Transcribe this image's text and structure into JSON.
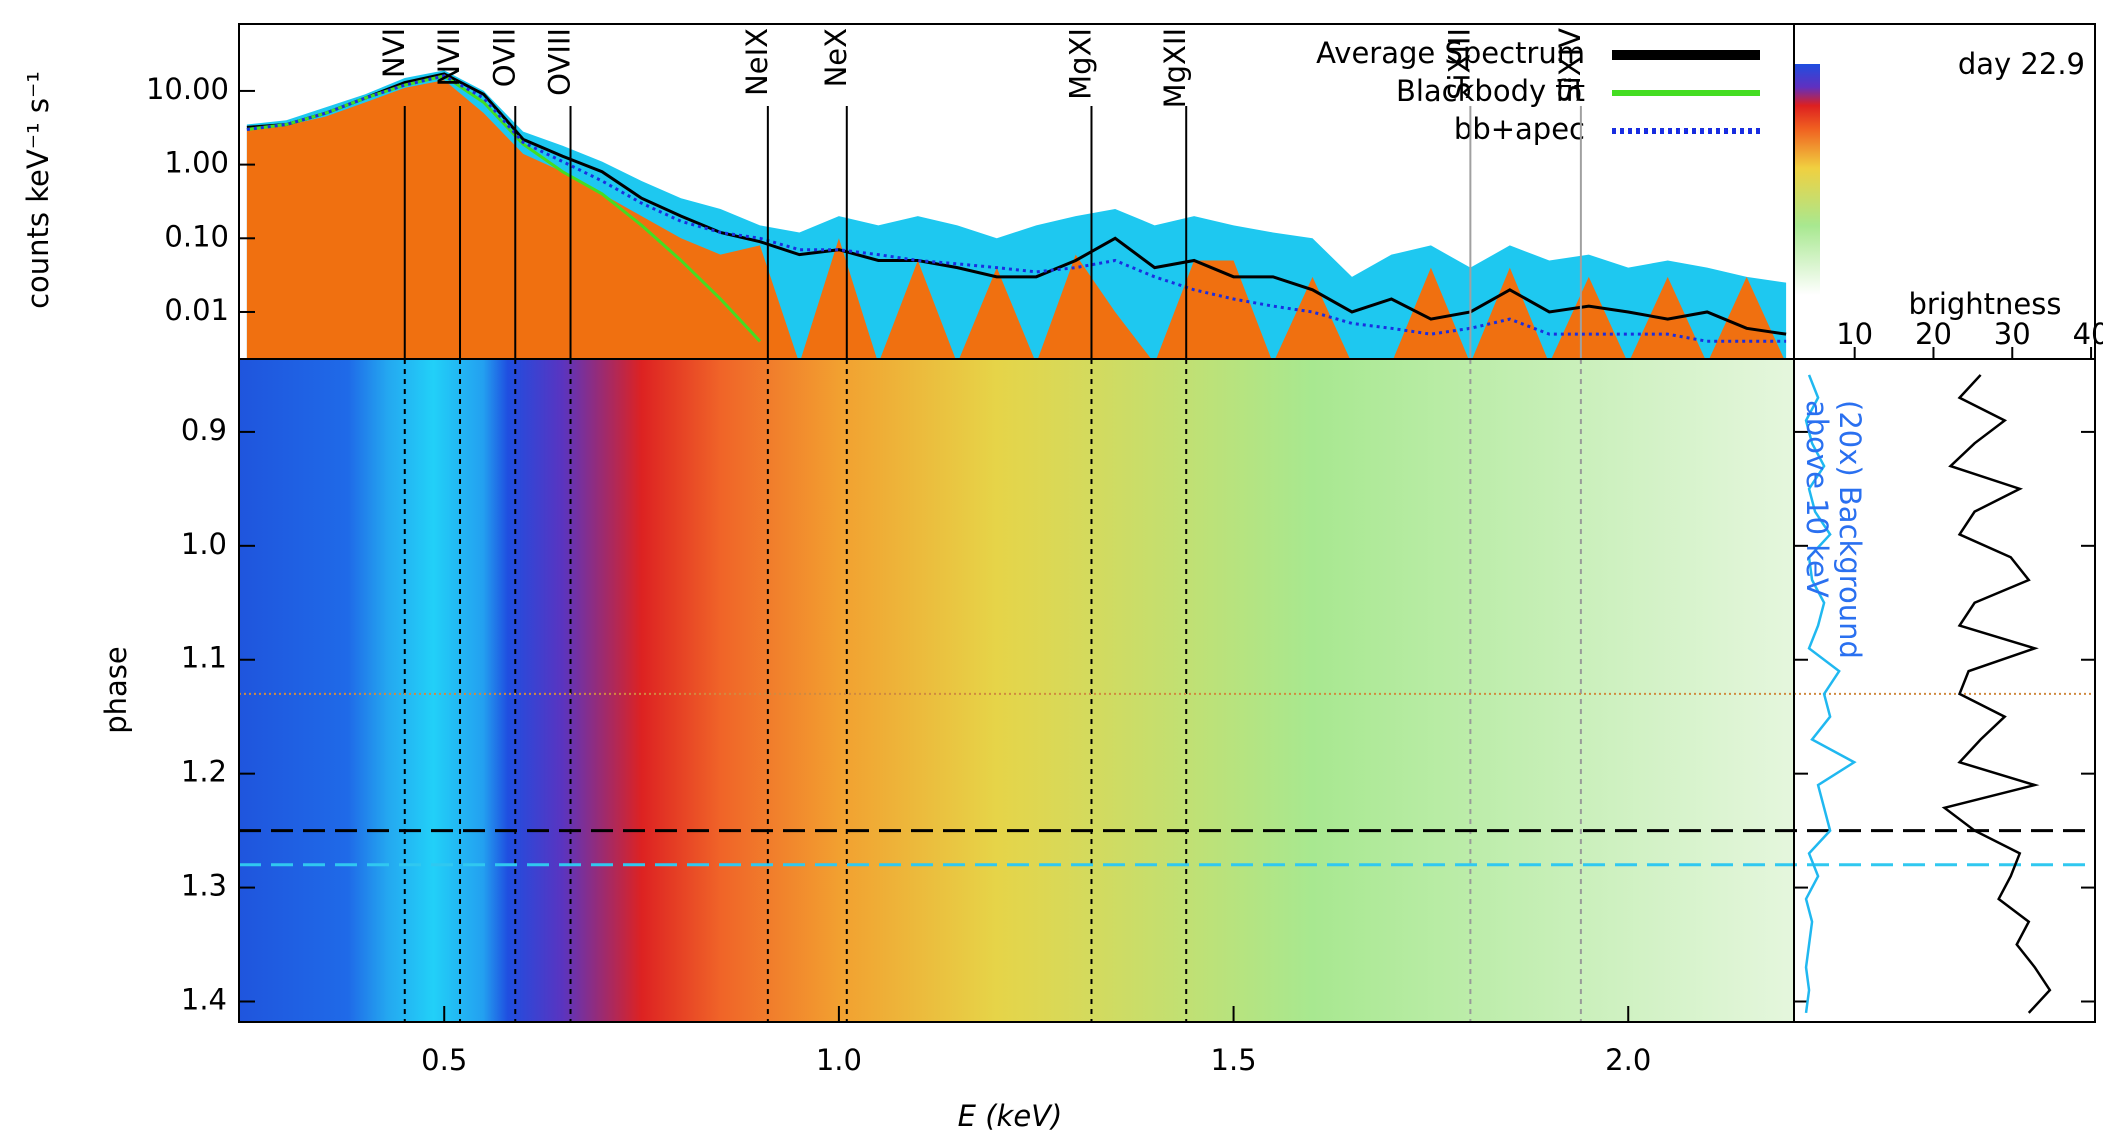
{
  "chart_data": [
    {
      "type": "spectrum",
      "ylabel": "counts keV⁻¹ s⁻¹",
      "log_y": true,
      "xlim": [
        0.24,
        2.21
      ],
      "ylim": [
        0.0023,
        81
      ],
      "yticks": [
        {
          "value": 10,
          "label": "10.00"
        },
        {
          "value": 1,
          "label": "1.00"
        },
        {
          "value": 0.1,
          "label": "0.10"
        },
        {
          "value": 0.01,
          "label": "0.01"
        }
      ],
      "x": [
        0.25,
        0.3,
        0.35,
        0.4,
        0.45,
        0.5,
        0.55,
        0.6,
        0.65,
        0.7,
        0.75,
        0.8,
        0.85,
        0.9,
        0.95,
        1.0,
        1.05,
        1.1,
        1.15,
        1.2,
        1.25,
        1.3,
        1.35,
        1.4,
        1.45,
        1.5,
        1.55,
        1.6,
        1.65,
        1.7,
        1.75,
        1.8,
        1.85,
        1.9,
        1.95,
        2.0,
        2.05,
        2.1,
        2.15,
        2.2
      ],
      "areas": [
        {
          "color": "#1ec8f0",
          "values": [
            3.5,
            4,
            6,
            9,
            15,
            19,
            10,
            2.8,
            1.8,
            1.1,
            0.6,
            0.35,
            0.25,
            0.15,
            0.12,
            0.2,
            0.15,
            0.2,
            0.15,
            0.1,
            0.15,
            0.2,
            0.25,
            0.15,
            0.2,
            0.15,
            0.12,
            0.1,
            0.03,
            0.06,
            0.08,
            0.04,
            0.08,
            0.05,
            0.06,
            0.04,
            0.05,
            0.04,
            0.03,
            0.025
          ]
        },
        {
          "color": "#f07010",
          "values": [
            3,
            3.4,
            4.5,
            7,
            11,
            14,
            5,
            1.4,
            0.8,
            0.4,
            0.2,
            0.1,
            0.06,
            0.08,
            0.002,
            0.1,
            0.002,
            0.05,
            0.002,
            0.04,
            0.002,
            0.06,
            0.01,
            0.002,
            0.05,
            0.05,
            0.002,
            0.03,
            0.002,
            0.002,
            0.04,
            0.002,
            0.04,
            0.002,
            0.03,
            0.002,
            0.03,
            0.002,
            0.03,
            0.002
          ]
        }
      ],
      "series": [
        {
          "name": "Average Spectrum",
          "color": "#000000",
          "style": "solid",
          "values": [
            3.2,
            3.5,
            5,
            8,
            13,
            17,
            9,
            2.2,
            1.3,
            0.8,
            0.35,
            0.2,
            0.12,
            0.09,
            0.06,
            0.07,
            0.05,
            0.05,
            0.04,
            0.03,
            0.03,
            0.05,
            0.1,
            0.04,
            0.05,
            0.03,
            0.03,
            0.02,
            0.01,
            0.015,
            0.008,
            0.01,
            0.02,
            0.01,
            0.012,
            0.01,
            0.008,
            0.01,
            0.006,
            0.005
          ]
        },
        {
          "name": "Blackbody fit",
          "color": "#44dd22",
          "style": "solid",
          "values": [
            3.0,
            3.5,
            5,
            8,
            12,
            16,
            7,
            1.9,
            0.8,
            0.4,
            0.15,
            0.05,
            0.015,
            0.004,
            null,
            null,
            null,
            null,
            null,
            null,
            null,
            null,
            null,
            null,
            null,
            null,
            null,
            null,
            null,
            null,
            null,
            null,
            null,
            null,
            null,
            null,
            null,
            null,
            null,
            null
          ]
        },
        {
          "name": "bb+apec",
          "color": "#1a2ee0",
          "style": "dotted",
          "values": [
            3.0,
            3.5,
            5,
            8,
            12,
            16,
            8,
            2,
            1.1,
            0.6,
            0.3,
            0.17,
            0.12,
            0.1,
            0.07,
            0.07,
            0.06,
            0.05,
            0.045,
            0.04,
            0.035,
            0.04,
            0.05,
            0.03,
            0.02,
            0.015,
            0.012,
            0.01,
            0.007,
            0.006,
            0.005,
            0.006,
            0.008,
            0.005,
            0.005,
            0.005,
            0.005,
            0.004,
            0.004,
            0.004
          ]
        }
      ],
      "lines": [
        {
          "label": "NVI",
          "energy": 0.45,
          "color": "#000000"
        },
        {
          "label": "NVII",
          "energy": 0.52,
          "color": "#000000"
        },
        {
          "label": "OVII",
          "energy": 0.59,
          "color": "#000000"
        },
        {
          "label": "OVIII",
          "energy": 0.66,
          "color": "#000000"
        },
        {
          "label": "NeIX",
          "energy": 0.91,
          "color": "#000000"
        },
        {
          "label": "NeX",
          "energy": 1.01,
          "color": "#000000"
        },
        {
          "label": "MgXI",
          "energy": 1.32,
          "color": "#000000"
        },
        {
          "label": "MgXII",
          "energy": 1.44,
          "color": "#000000"
        },
        {
          "label": "SiXIII",
          "energy": 1.8,
          "color": "#a0a0a0"
        },
        {
          "label": "SiXIV",
          "energy": 1.94,
          "color": "#a0a0a0"
        }
      ]
    },
    {
      "type": "heatmap",
      "xlabel": "E (keV)",
      "ylabel": "phase",
      "xlim": [
        0.24,
        2.21
      ],
      "xticks": [
        0.5,
        {
          "value": 1,
          "label": "1.0"
        },
        1.5,
        {
          "value": 2,
          "label": "2.0"
        }
      ],
      "ylim": [
        0.836,
        1.418
      ],
      "yticks": [
        0.9,
        {
          "value": 1,
          "label": "1.0"
        },
        1.1,
        1.2,
        1.3,
        1.4
      ],
      "hlines": [
        {
          "value": 1.13,
          "color": "#d08a40",
          "style": "dotted"
        },
        {
          "value": 1.25,
          "color": "#000000",
          "style": "dashed"
        },
        {
          "value": 1.28,
          "color": "#30c8f0",
          "style": "dashed"
        }
      ]
    },
    {
      "type": "lightcurve",
      "xlim": [
        0,
        1
      ],
      "phase": [
        0.85,
        0.87,
        0.89,
        0.91,
        0.93,
        0.95,
        0.97,
        0.99,
        1.01,
        1.03,
        1.05,
        1.07,
        1.09,
        1.11,
        1.13,
        1.15,
        1.17,
        1.19,
        1.21,
        1.23,
        1.25,
        1.27,
        1.29,
        1.31,
        1.33,
        1.35,
        1.37,
        1.39,
        1.41
      ],
      "series": [
        {
          "color": "#000000",
          "values": [
            0.62,
            0.55,
            0.7,
            0.6,
            0.52,
            0.75,
            0.6,
            0.55,
            0.72,
            0.78,
            0.6,
            0.55,
            0.8,
            0.58,
            0.55,
            0.7,
            0.62,
            0.55,
            0.8,
            0.5,
            0.6,
            0.75,
            0.72,
            0.68,
            0.78,
            0.74,
            0.8,
            0.85,
            0.78
          ]
        },
        {
          "color": "#20b8f0",
          "values": [
            0.05,
            0.08,
            0.04,
            0.06,
            0.1,
            0.05,
            0.07,
            0.12,
            0.05,
            0.06,
            0.1,
            0.08,
            0.05,
            0.15,
            0.1,
            0.12,
            0.06,
            0.2,
            0.08,
            0.1,
            0.12,
            0.05,
            0.08,
            0.04,
            0.06,
            0.05,
            0.04,
            0.05,
            0.04
          ]
        }
      ],
      "annotation": [
        "(20x) Background",
        "above 10 keV"
      ]
    },
    {
      "type": "colorbar",
      "label": "brightness",
      "annotation": "day 22.9",
      "xlim": [
        2.3,
        40.5
      ],
      "xticks": [
        10,
        20,
        30,
        40
      ]
    }
  ]
}
